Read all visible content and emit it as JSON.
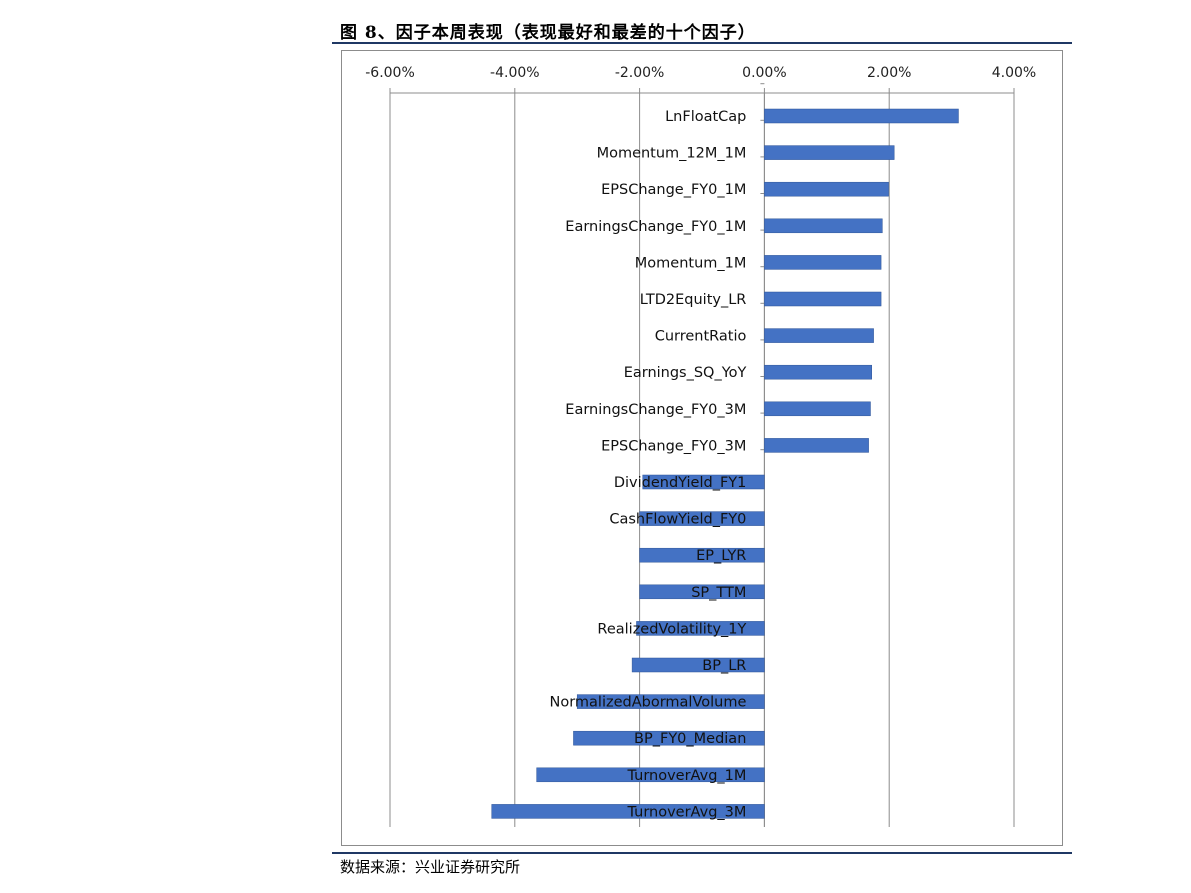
{
  "figure": {
    "title": "图 8、因子本周表现（表现最好和最差的十个因子）",
    "source": "数据来源：兴业证券研究所"
  },
  "colors": {
    "bar": "#4472c4",
    "bar_edge": "#2f5597",
    "grid": "#8c8c8c",
    "rule": "#1f3864"
  },
  "chart_data": {
    "type": "bar",
    "orientation": "horizontal",
    "xlim": [
      -0.06,
      0.04
    ],
    "x_ticks": [
      -0.06,
      -0.04,
      -0.02,
      0.0,
      0.02,
      0.04
    ],
    "x_tick_labels": [
      "-6.00%",
      "-4.00%",
      "-2.00%",
      "0.00%",
      "2.00%",
      "4.00%"
    ],
    "x_axis_position": "top",
    "grid": true,
    "legend": "none",
    "categories": [
      "LnFloatCap",
      "Momentum_12M_1M",
      "EPSChange_FY0_1M",
      "EarningsChange_FY0_1M",
      "Momentum_1M",
      "LTD2Equity_LR",
      "CurrentRatio",
      "Earnings_SQ_YoY",
      "EarningsChange_FY0_3M",
      "EPSChange_FY0_3M",
      "DividendYield_FY1",
      "CashFlowYield_FY0",
      "EP_LYR",
      "SP_TTM",
      "RealizedVolatility_1Y",
      "BP_LR",
      "NormalizedAbormalVolume",
      "BP_FY0_Median",
      "TurnoverAvg_1M",
      "TurnoverAvg_3M"
    ],
    "values": [
      0.0311,
      0.0208,
      0.0199,
      0.0189,
      0.0187,
      0.0187,
      0.0175,
      0.0172,
      0.017,
      0.0167,
      -0.0195,
      -0.02,
      -0.02,
      -0.02,
      -0.0205,
      -0.0212,
      -0.03,
      -0.0306,
      -0.0365,
      -0.0437
    ]
  }
}
